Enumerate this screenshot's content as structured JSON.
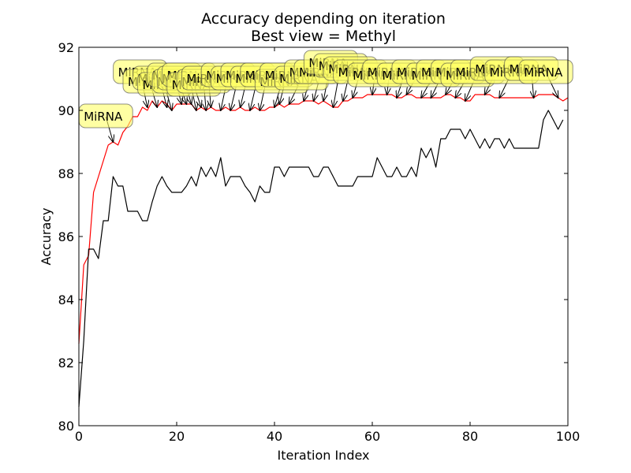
{
  "chart_data": {
    "type": "line",
    "title": "Accuracy depending on iteration",
    "subtitle": "Best view = Methyl",
    "xlabel": "Iteration Index",
    "ylabel": "Accuracy",
    "xlim": [
      0,
      100
    ],
    "ylim": [
      80,
      92
    ],
    "xticks": [
      0,
      20,
      40,
      60,
      80,
      100
    ],
    "yticks": [
      80,
      82,
      84,
      86,
      88,
      90,
      92
    ],
    "grid": false,
    "series": [
      {
        "color": "#ff0000",
        "values": [
          82.6,
          85.1,
          85.4,
          87.4,
          87.9,
          88.4,
          88.9,
          89.0,
          88.9,
          89.3,
          89.5,
          89.8,
          89.8,
          90.1,
          90.0,
          90.3,
          90.1,
          90.3,
          90.2,
          90.0,
          90.2,
          90.2,
          90.2,
          90.2,
          90.0,
          90.1,
          90.0,
          90.1,
          90.0,
          90.0,
          90.1,
          90.0,
          90.0,
          90.1,
          90.0,
          90.0,
          90.1,
          90.0,
          90.0,
          90.1,
          90.1,
          90.2,
          90.1,
          90.2,
          90.2,
          90.2,
          90.3,
          90.3,
          90.3,
          90.2,
          90.3,
          90.2,
          90.1,
          90.1,
          90.3,
          90.3,
          90.4,
          90.4,
          90.4,
          90.5,
          90.5,
          90.5,
          90.5,
          90.5,
          90.5,
          90.4,
          90.4,
          90.5,
          90.5,
          90.4,
          90.4,
          90.4,
          90.4,
          90.4,
          90.4,
          90.5,
          90.5,
          90.4,
          90.4,
          90.3,
          90.3,
          90.5,
          90.5,
          90.5,
          90.5,
          90.4,
          90.4,
          90.4,
          90.4,
          90.4,
          90.4,
          90.4,
          90.4,
          90.4,
          90.5,
          90.5,
          90.5,
          90.5,
          90.4,
          90.3,
          90.4
        ]
      },
      {
        "color": "#000000",
        "values": [
          80.6,
          82.7,
          85.6,
          85.6,
          85.3,
          86.5,
          86.5,
          87.9,
          87.6,
          87.6,
          86.8,
          86.8,
          86.8,
          86.5,
          86.5,
          87.1,
          87.6,
          87.9,
          87.6,
          87.4,
          87.4,
          87.4,
          87.6,
          87.9,
          87.6,
          88.2,
          87.9,
          88.2,
          87.9,
          88.5,
          87.6,
          87.9,
          87.9,
          87.9,
          87.6,
          87.4,
          87.1,
          87.6,
          87.4,
          87.4,
          88.2,
          88.2,
          87.9,
          88.2,
          88.2,
          88.2,
          88.2,
          88.2,
          87.9,
          87.9,
          88.2,
          88.2,
          87.9,
          87.6,
          87.6,
          87.6,
          87.6,
          87.9,
          87.9,
          87.9,
          87.9,
          88.5,
          88.2,
          87.9,
          87.9,
          88.2,
          87.9,
          87.9,
          88.2,
          87.9,
          88.8,
          88.5,
          88.8,
          88.2,
          89.1,
          89.1,
          89.4,
          89.4,
          89.4,
          89.1,
          89.4,
          89.1,
          88.8,
          89.1,
          88.8,
          89.1,
          89.1,
          88.8,
          89.1,
          88.8,
          88.8,
          88.8,
          88.8,
          88.8,
          88.8,
          89.7,
          90.0,
          89.7,
          89.4,
          89.7
        ]
      }
    ],
    "annotations": {
      "text": "MiRNA",
      "box_color": "#ffff66",
      "items": [
        {
          "x": 7,
          "y": 89.0,
          "tx": 1,
          "ty": 89.8
        },
        {
          "x": 14,
          "y": 90.1,
          "tx": 8,
          "ty": 91.2
        },
        {
          "x": 16,
          "y": 90.1,
          "tx": 10,
          "ty": 90.9
        },
        {
          "x": 18,
          "y": 90.1,
          "tx": 12,
          "ty": 91.0
        },
        {
          "x": 19,
          "y": 90.0,
          "tx": 13,
          "ty": 90.8
        },
        {
          "x": 21,
          "y": 90.2,
          "tx": 15,
          "ty": 91.1
        },
        {
          "x": 22,
          "y": 90.2,
          "tx": 16,
          "ty": 90.9
        },
        {
          "x": 23,
          "y": 90.2,
          "tx": 17,
          "ty": 91.0
        },
        {
          "x": 24,
          "y": 90.0,
          "tx": 18,
          "ty": 91.1
        },
        {
          "x": 25,
          "y": 90.1,
          "tx": 19,
          "ty": 90.8
        },
        {
          "x": 26,
          "y": 90.0,
          "tx": 21,
          "ty": 90.9
        },
        {
          "x": 27,
          "y": 90.1,
          "tx": 22,
          "ty": 91.0
        },
        {
          "x": 29,
          "y": 90.0,
          "tx": 26,
          "ty": 91.1
        },
        {
          "x": 31,
          "y": 90.0,
          "tx": 28,
          "ty": 91.0
        },
        {
          "x": 33,
          "y": 90.1,
          "tx": 30,
          "ty": 91.1
        },
        {
          "x": 35,
          "y": 90.0,
          "tx": 32,
          "ty": 91.0
        },
        {
          "x": 37,
          "y": 90.0,
          "tx": 34,
          "ty": 91.1
        },
        {
          "x": 40,
          "y": 90.1,
          "tx": 37,
          "ty": 90.9
        },
        {
          "x": 41,
          "y": 90.2,
          "tx": 38,
          "ty": 91.1
        },
        {
          "x": 43,
          "y": 90.2,
          "tx": 41,
          "ty": 91.0
        },
        {
          "x": 46,
          "y": 90.3,
          "tx": 43,
          "ty": 91.2
        },
        {
          "x": 48,
          "y": 90.3,
          "tx": 45,
          "ty": 91.2
        },
        {
          "x": 50,
          "y": 90.3,
          "tx": 47,
          "ty": 91.5
        },
        {
          "x": 52,
          "y": 90.1,
          "tx": 49,
          "ty": 91.4
        },
        {
          "x": 54,
          "y": 90.3,
          "tx": 51,
          "ty": 91.3
        },
        {
          "x": 56,
          "y": 90.4,
          "tx": 53,
          "ty": 91.2
        },
        {
          "x": 60,
          "y": 90.5,
          "tx": 56,
          "ty": 91.1
        },
        {
          "x": 63,
          "y": 90.5,
          "tx": 59,
          "ty": 91.2
        },
        {
          "x": 65,
          "y": 90.4,
          "tx": 62,
          "ty": 91.1
        },
        {
          "x": 67,
          "y": 90.5,
          "tx": 65,
          "ty": 91.2
        },
        {
          "x": 70,
          "y": 90.4,
          "tx": 68,
          "ty": 91.1
        },
        {
          "x": 72,
          "y": 90.4,
          "tx": 70,
          "ty": 91.2
        },
        {
          "x": 75,
          "y": 90.5,
          "tx": 73,
          "ty": 91.2
        },
        {
          "x": 77,
          "y": 90.4,
          "tx": 75,
          "ty": 91.1
        },
        {
          "x": 79,
          "y": 90.3,
          "tx": 77,
          "ty": 91.2
        },
        {
          "x": 83,
          "y": 90.5,
          "tx": 81,
          "ty": 91.3
        },
        {
          "x": 86,
          "y": 90.4,
          "tx": 84,
          "ty": 91.2
        },
        {
          "x": 93,
          "y": 90.4,
          "tx": 88,
          "ty": 91.3
        },
        {
          "x": 98,
          "y": 90.4,
          "tx": 91,
          "ty": 91.2
        }
      ]
    }
  }
}
